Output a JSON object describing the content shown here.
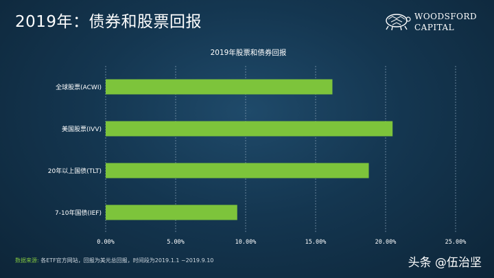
{
  "slide": {
    "title": "2019年：债券和股票回报"
  },
  "logo": {
    "line1": "WOODSFORD",
    "line2": "CAPITAL",
    "icon": "turtle-icon"
  },
  "colors": {
    "bar": "#7dc43b",
    "grid": "#8aa3b8",
    "text": "#ffffff"
  },
  "chart_data": {
    "type": "bar",
    "orientation": "horizontal",
    "title": "2019年股票和债券回报",
    "categories": [
      "全球股票(ACWI)",
      "美国股票(IVV)",
      "20年以上国债(TLT)",
      "7-10年国债(IEF)"
    ],
    "values": [
      16.2,
      20.5,
      18.8,
      9.4
    ],
    "xlim": [
      0,
      25
    ],
    "x_ticks": [
      "0.00%",
      "5.00%",
      "10.00%",
      "15.00%",
      "20.00%",
      "25.00%"
    ],
    "grid": "vertical dashed",
    "legend": "none"
  },
  "footer": {
    "source_label": "数据来源:",
    "source_text": "各ETF官方网站，回报为美元总回报，时间段为2019.1.1 ~2019.9.10"
  },
  "watermark": "头条 @伍治坚"
}
